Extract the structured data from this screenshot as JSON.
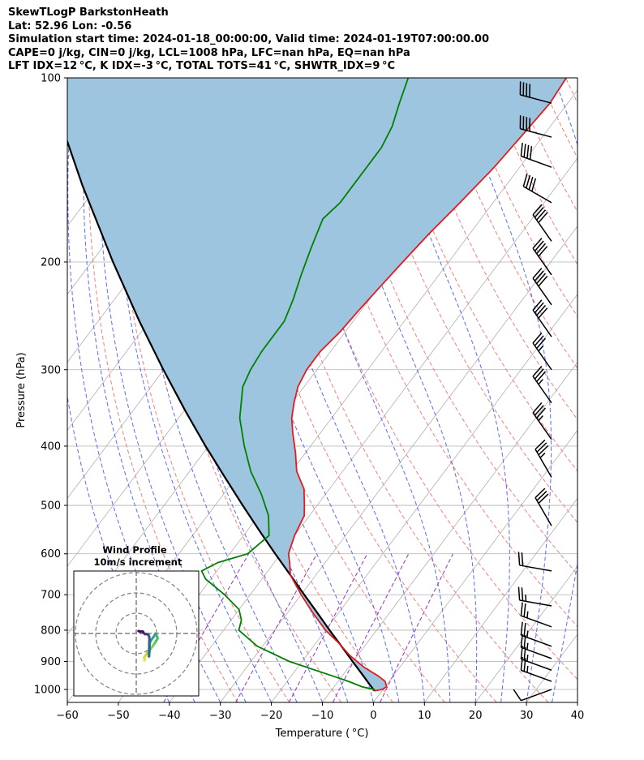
{
  "header": {
    "line1": "SkewTLogP BarkstonHeath",
    "line2": "Lat: 52.96   Lon: -0.56",
    "line3": "Simulation start time: 2024-01-18_00:00:00, Valid time: 2024-01-19T07:00:00.00",
    "line4": "CAPE=0 j/kg, CIN=0 j/kg, LCL=1008 hPa, LFC=nan hPa, EQ=nan hPa",
    "line5": "LFT IDX=12 °C, K IDX=-3 °C, TOTAL TOTS=41 °C, SHWTR_IDX=9 °C"
  },
  "hodograph": {
    "title": "Wind Profile",
    "subtitle": "10m/s increment"
  },
  "chart_data": {
    "type": "line",
    "xlabel": "Temperature ( °C)",
    "ylabel": "Pressure (hPa)",
    "xlim": [
      -60,
      40
    ],
    "ylim": [
      1050,
      100
    ],
    "yscale": "log",
    "x_ticks": [
      -60,
      -50,
      -40,
      -30,
      -20,
      -10,
      0,
      10,
      20,
      30,
      40
    ],
    "x_tick_labels": [
      "−60",
      "−50",
      "−40",
      "−30",
      "−20",
      "−10",
      "0",
      "10",
      "20",
      "30",
      "40"
    ],
    "y_ticks": [
      100,
      200,
      300,
      400,
      500,
      600,
      700,
      800,
      900,
      1000
    ],
    "y_tick_labels": [
      "100",
      "200",
      "300",
      "400",
      "500",
      "600",
      "700",
      "800",
      "900",
      "1000"
    ],
    "grid": true,
    "colors": {
      "temperature": "#e41a1c",
      "dewpoint": "#008000",
      "parcel": "#000000",
      "cape_fill": "#9ec5e0",
      "dry_adiabat": "#f08080",
      "moist_adiabat": "#5b6cf0",
      "mixing_ratio": "#9b30c8",
      "isotherm_grid": "#b0b0b0"
    },
    "series": [
      {
        "key": "temperature",
        "pressure": [
          1005,
          1000,
          990,
          970,
          950,
          920,
          880,
          840,
          800,
          750,
          700,
          650,
          620,
          600,
          560,
          520,
          500,
          470,
          440,
          410,
          380,
          360,
          340,
          320,
          300,
          280,
          260,
          240,
          220,
          200,
          180,
          160,
          140,
          120,
          110,
          100
        ],
        "values": [
          -1.5,
          -0.2,
          0.3,
          -0.8,
          -3.0,
          -7.0,
          -11.5,
          -15.5,
          -20.0,
          -25.0,
          -30.0,
          -35.0,
          -37.0,
          -38.5,
          -40.0,
          -41.0,
          -42.5,
          -45.0,
          -49.0,
          -52.0,
          -55.5,
          -57.8,
          -59.6,
          -61.2,
          -62.0,
          -62.0,
          -61.0,
          -60.5,
          -59.8,
          -59.0,
          -58.0,
          -56.5,
          -55.0,
          -54.0,
          -53.5,
          -54.0
        ]
      },
      {
        "key": "dewpoint",
        "pressure": [
          1005,
          1000,
          990,
          970,
          950,
          900,
          850,
          800,
          770,
          740,
          700,
          660,
          640,
          620,
          600,
          560,
          520,
          480,
          440,
          400,
          360,
          320,
          300,
          280,
          250,
          230,
          210,
          190,
          170,
          160,
          150,
          140,
          130,
          120,
          110,
          100
        ],
        "values": [
          -1.8,
          -1.8,
          -4.5,
          -8.0,
          -12.0,
          -22.5,
          -31.0,
          -37.0,
          -38.0,
          -40.0,
          -45.0,
          -51.0,
          -53.0,
          -51.0,
          -46.5,
          -45.0,
          -48.0,
          -52.5,
          -58.0,
          -63.0,
          -68.0,
          -72.0,
          -73.0,
          -73.5,
          -73.5,
          -75.0,
          -77.0,
          -79.0,
          -81.0,
          -80.0,
          -80.0,
          -80.0,
          -80.0,
          -81.0,
          -83.0,
          -85.0
        ]
      },
      {
        "key": "parcel",
        "pressure": [
          1005,
          980,
          950,
          900,
          850,
          800,
          750,
          700,
          650,
          600,
          550,
          500,
          450,
          400,
          350,
          300,
          250,
          200,
          150,
          100
        ],
        "values": [
          -1.5,
          -3.5,
          -5.9,
          -10.1,
          -14.5,
          -19.2,
          -24.1,
          -29.4,
          -35.0,
          -41.1,
          -47.6,
          -54.6,
          -62.2,
          -70.6,
          -79.8,
          -90.1,
          -101.9,
          -115.8,
          -133.0,
          -156.1
        ]
      }
    ],
    "wind_barbs": [
      {
        "pressure": 1000,
        "speed_kt": 10,
        "direction_deg": 250
      },
      {
        "pressure": 970,
        "speed_kt": 25,
        "direction_deg": 290
      },
      {
        "pressure": 930,
        "speed_kt": 25,
        "direction_deg": 290
      },
      {
        "pressure": 890,
        "speed_kt": 25,
        "direction_deg": 290
      },
      {
        "pressure": 850,
        "speed_kt": 25,
        "direction_deg": 290
      },
      {
        "pressure": 790,
        "speed_kt": 25,
        "direction_deg": 290
      },
      {
        "pressure": 730,
        "speed_kt": 25,
        "direction_deg": 280
      },
      {
        "pressure": 640,
        "speed_kt": 20,
        "direction_deg": 280
      },
      {
        "pressure": 540,
        "speed_kt": 30,
        "direction_deg": 330
      },
      {
        "pressure": 450,
        "speed_kt": 35,
        "direction_deg": 330
      },
      {
        "pressure": 390,
        "speed_kt": 35,
        "direction_deg": 325
      },
      {
        "pressure": 340,
        "speed_kt": 35,
        "direction_deg": 325
      },
      {
        "pressure": 300,
        "speed_kt": 35,
        "direction_deg": 325
      },
      {
        "pressure": 265,
        "speed_kt": 40,
        "direction_deg": 325
      },
      {
        "pressure": 235,
        "speed_kt": 40,
        "direction_deg": 325
      },
      {
        "pressure": 210,
        "speed_kt": 40,
        "direction_deg": 325
      },
      {
        "pressure": 185,
        "speed_kt": 40,
        "direction_deg": 325
      },
      {
        "pressure": 160,
        "speed_kt": 40,
        "direction_deg": 300
      },
      {
        "pressure": 140,
        "speed_kt": 40,
        "direction_deg": 290
      },
      {
        "pressure": 125,
        "speed_kt": 40,
        "direction_deg": 285
      },
      {
        "pressure": 110,
        "speed_kt": 40,
        "direction_deg": 285
      }
    ],
    "hodograph_points": [
      {
        "u": 4.0,
        "v": -13.5
      },
      {
        "u": 4.2,
        "v": -12.8
      },
      {
        "u": 3.8,
        "v": -12.0
      },
      {
        "u": 4.5,
        "v": -11.0
      },
      {
        "u": 5.3,
        "v": -9.7
      },
      {
        "u": 6.3,
        "v": -8.5
      },
      {
        "u": 7.4,
        "v": -7.2
      },
      {
        "u": 8.3,
        "v": -6.0
      },
      {
        "u": 9.1,
        "v": -4.8
      },
      {
        "u": 9.9,
        "v": -3.6
      },
      {
        "u": 10.6,
        "v": -2.4
      },
      {
        "u": 10.2,
        "v": -1.5
      },
      {
        "u": 9.9,
        "v": -0.7
      },
      {
        "u": 9.5,
        "v": -0.1
      },
      {
        "u": 8.3,
        "v": -2.0
      },
      {
        "u": 7.4,
        "v": -3.2
      },
      {
        "u": 6.7,
        "v": -4.4
      },
      {
        "u": 6.6,
        "v": -5.9
      },
      {
        "u": 6.6,
        "v": -7.5
      },
      {
        "u": 6.5,
        "v": -9.0
      },
      {
        "u": 6.3,
        "v": -10.3
      },
      {
        "u": 6.3,
        "v": -11.3
      },
      {
        "u": 6.4,
        "v": -4.2
      },
      {
        "u": 6.5,
        "v": -2.9
      },
      {
        "u": 6.4,
        "v": -1.6
      },
      {
        "u": 6.0,
        "v": -0.7
      },
      {
        "u": 5.2,
        "v": -0.3
      },
      {
        "u": 4.3,
        "v": -0.3
      },
      {
        "u": 3.6,
        "v": 0.3
      },
      {
        "u": 3.4,
        "v": 0.8
      },
      {
        "u": 3.0,
        "v": 1.0
      },
      {
        "u": 2.1,
        "v": 0.9
      },
      {
        "u": 1.4,
        "v": 1.1
      },
      {
        "u": 1.1,
        "v": 1.2
      }
    ],
    "hodograph_rings_ms": [
      10,
      20,
      30
    ]
  }
}
